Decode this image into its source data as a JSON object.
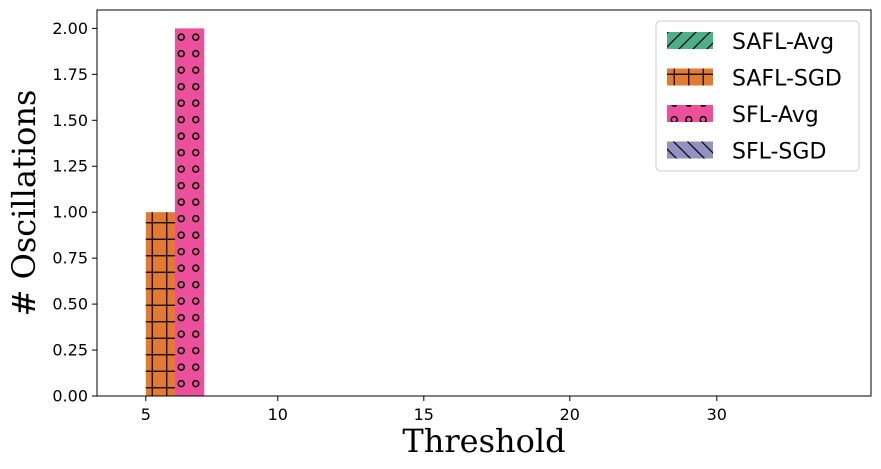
{
  "chart_data": {
    "type": "bar",
    "categories": [
      "5",
      "10",
      "15",
      "20",
      "30"
    ],
    "series": [
      {
        "name": "SAFL-Avg",
        "values": [
          0,
          0,
          0,
          0,
          0
        ],
        "color": "#4aaf8a",
        "hatch": "forward-slash"
      },
      {
        "name": "SAFL-SGD",
        "values": [
          1,
          0,
          0,
          0,
          0
        ],
        "color": "#e07b31",
        "hatch": "grid"
      },
      {
        "name": "SFL-Avg",
        "values": [
          2,
          0,
          0,
          0,
          0
        ],
        "color": "#ec509a",
        "hatch": "circles"
      },
      {
        "name": "SFL-SGD",
        "values": [
          0,
          0,
          0,
          0,
          0
        ],
        "color": "#9291c1",
        "hatch": "back-slash"
      }
    ],
    "xlabel": "Threshold",
    "ylabel": "# Oscillations",
    "ylim": [
      0,
      2.1
    ],
    "yticks": [
      "0.00",
      "0.25",
      "0.50",
      "0.75",
      "1.00",
      "1.25",
      "1.50",
      "1.75",
      "2.00"
    ],
    "grid": false,
    "legend_position": "top-right"
  }
}
